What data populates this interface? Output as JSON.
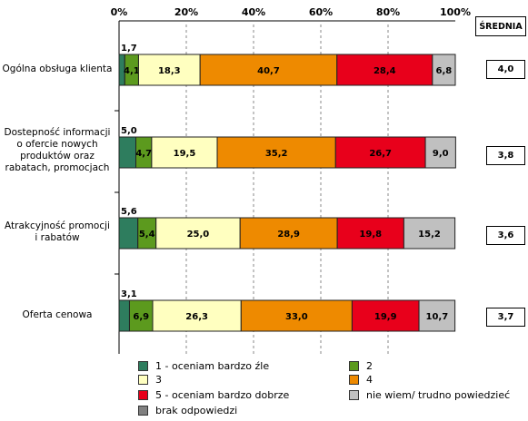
{
  "chart_data": {
    "type": "bar",
    "orientation": "horizontal",
    "stacked": true,
    "xlim": [
      0,
      100
    ],
    "x_ticks": [
      "0%",
      "20%",
      "40%",
      "60%",
      "80%",
      "100%"
    ],
    "categories": [
      "Ogólna obsługa klienta",
      "Dostepność informacji o ofercie nowych produktów oraz rabatach, promocjach",
      "Atrakcyjność promocji i rabatów",
      "Oferta cenowa"
    ],
    "series": [
      {
        "name": "1 - oceniam bardzo źle",
        "color": "#2e7d5e",
        "values": [
          1.7,
          5.0,
          5.6,
          3.1
        ],
        "labels": [
          "1,7",
          "5,0",
          "5,6",
          "3,1"
        ]
      },
      {
        "name": "2",
        "color": "#5c9a1e",
        "values": [
          4.1,
          4.7,
          5.4,
          6.9
        ],
        "labels": [
          "4,1",
          "4,7",
          "5,4",
          "6,9"
        ]
      },
      {
        "name": "3",
        "color": "#ffffc0",
        "values": [
          18.3,
          19.5,
          25.0,
          26.3
        ],
        "labels": [
          "18,3",
          "19,5",
          "25,0",
          "26,3"
        ]
      },
      {
        "name": "4",
        "color": "#ee8a00",
        "values": [
          40.7,
          35.2,
          28.9,
          33.0
        ],
        "labels": [
          "40,7",
          "35,2",
          "28,9",
          "33,0"
        ]
      },
      {
        "name": "5 - oceniam bardzo dobrze",
        "color": "#e8001b",
        "values": [
          28.4,
          26.7,
          19.8,
          19.9
        ],
        "labels": [
          "28,4",
          "26,7",
          "19,8",
          "19,9"
        ]
      },
      {
        "name": "nie wiem/ trudno powiedzieć",
        "color": "#c0c0c0",
        "values": [
          6.8,
          9.0,
          15.2,
          10.7
        ],
        "labels": [
          "6,8",
          "9,0",
          "15,2",
          "10,7"
        ]
      },
      {
        "name": "brak odpowiedzi",
        "color": "#808080",
        "values": [
          0,
          0,
          0,
          0
        ],
        "labels": [
          "",
          "",
          "",
          ""
        ]
      }
    ],
    "averages": {
      "header": "ŚREDNIA",
      "values": [
        "4,0",
        "3,8",
        "3,6",
        "3,7"
      ]
    },
    "legend_position": "bottom",
    "grid": true
  }
}
